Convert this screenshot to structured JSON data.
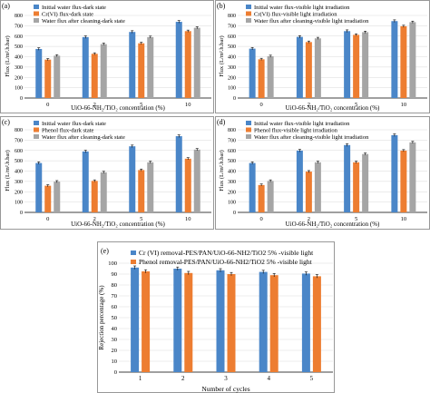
{
  "colors": {
    "series1": "#4a86c8",
    "series2": "#ed7d31",
    "series3": "#a5a5a5",
    "grid": "#d9d9d9",
    "axis": "#000000"
  },
  "chart_data": [
    {
      "panel_label": "(a)",
      "type": "bar",
      "categories": [
        "0",
        "2",
        "5",
        "10"
      ],
      "series": [
        {
          "name": "Initial water flux-dark state",
          "values": [
            475,
            590,
            640,
            738
          ]
        },
        {
          "name": "Cr(VI) flux-dark state",
          "values": [
            372,
            428,
            530,
            648
          ]
        },
        {
          "name": "Water flux after cleaning-dark state",
          "values": [
            410,
            522,
            590,
            680
          ]
        }
      ],
      "errors": [
        [
          12,
          12,
          12,
          12
        ],
        [
          10,
          10,
          10,
          10
        ],
        [
          10,
          10,
          10,
          10
        ]
      ],
      "xlabel": "UiO-66-NH₂/TiO₂ concentration (%)",
      "ylabel": "Flux (L/m².h.bar)",
      "ylim": [
        0,
        800
      ],
      "yticks": [
        "0",
        "100",
        "200",
        "300",
        "400",
        "500",
        "600",
        "700",
        "800"
      ],
      "grid": true,
      "legend": "top-left"
    },
    {
      "panel_label": "(b)",
      "type": "bar",
      "categories": [
        "0",
        "2",
        "5",
        "10"
      ],
      "series": [
        {
          "name": "Initial water flux-visible light irradiation",
          "values": [
            478,
            592,
            648,
            745
          ]
        },
        {
          "name": "Cr(VI) flux-visible light irradiation",
          "values": [
            375,
            542,
            612,
            695
          ]
        },
        {
          "name": "Water flux after cleaning-visible light irradiation",
          "values": [
            405,
            578,
            638,
            735
          ]
        }
      ],
      "errors": [
        [
          12,
          12,
          12,
          12
        ],
        [
          10,
          10,
          10,
          10
        ],
        [
          10,
          10,
          10,
          10
        ]
      ],
      "xlabel": "UiO-66-NH₂/TiO₂ concentration (%)",
      "ylabel": "Flux (L/m².h.bar)",
      "ylim": [
        0,
        800
      ],
      "yticks": [
        "0",
        "100",
        "200",
        "300",
        "400",
        "500",
        "600",
        "700",
        "800"
      ],
      "grid": true,
      "legend": "top-left"
    },
    {
      "panel_label": "(c)",
      "type": "bar",
      "categories": [
        "0",
        "2",
        "5",
        "10"
      ],
      "series": [
        {
          "name": "Initial water flux-dark state",
          "values": [
            478,
            590,
            640,
            738
          ]
        },
        {
          "name": "Phenol flux-dark state",
          "values": [
            258,
            305,
            410,
            520
          ]
        },
        {
          "name": "Water flux after cleaning-dark state",
          "values": [
            298,
            388,
            485,
            608
          ]
        }
      ],
      "errors": [
        [
          12,
          12,
          12,
          12
        ],
        [
          10,
          10,
          10,
          10
        ],
        [
          10,
          10,
          10,
          10
        ]
      ],
      "xlabel": "UiO-66-NH₂/TiO₂ concentration (%)",
      "ylabel": "Flux (L/m².h.bar)",
      "ylim": [
        0,
        800
      ],
      "yticks": [
        "0",
        "100",
        "200",
        "300",
        "400",
        "500",
        "600",
        "700",
        "800"
      ],
      "grid": true,
      "legend": "top-left"
    },
    {
      "panel_label": "(d)",
      "type": "bar",
      "categories": [
        "0",
        "2",
        "5",
        "10"
      ],
      "series": [
        {
          "name": "Initial water flux-visible light irradiation",
          "values": [
            478,
            598,
            652,
            748
          ]
        },
        {
          "name": "Phenol flux-visible light irradiation",
          "values": [
            265,
            395,
            485,
            598
          ]
        },
        {
          "name": "Water flux after cleaning-visible light irradiation",
          "values": [
            305,
            485,
            565,
            678
          ]
        }
      ],
      "errors": [
        [
          12,
          12,
          12,
          12
        ],
        [
          10,
          10,
          10,
          10
        ],
        [
          10,
          10,
          10,
          10
        ]
      ],
      "xlabel": "UiO-66-NH₂/TiO₂ concentration (%)",
      "ylabel": "Flux (L/m².h.bar)",
      "ylim": [
        0,
        800
      ],
      "yticks": [
        "0",
        "100",
        "200",
        "300",
        "400",
        "500",
        "600",
        "700",
        "800"
      ],
      "grid": true,
      "legend": "top-left"
    },
    {
      "panel_label": "(e)",
      "type": "bar",
      "categories": [
        "1",
        "2",
        "3",
        "4",
        "5"
      ],
      "series": [
        {
          "name": "Cr (VI) removal-PES/PAN/UiO-66-NH2/TiO2 5% -visible light",
          "values": [
            96,
            95,
            93.5,
            92,
            90.5
          ]
        },
        {
          "name": "Phenol removal-PES/PAN/UiO-66-NH2/TiO2 5% -visible light",
          "values": [
            92.5,
            91,
            90,
            89,
            88
          ]
        }
      ],
      "errors": [
        [
          1.5,
          1.5,
          1.5,
          1.5,
          1.5
        ],
        [
          1.5,
          1.5,
          1.5,
          1.5,
          1.5
        ]
      ],
      "xlabel": "Number of cycles",
      "ylabel": "Rejection percentage (%)",
      "ylim": [
        0,
        100
      ],
      "yticks": [
        "0",
        "10",
        "20",
        "30",
        "40",
        "50",
        "60",
        "70",
        "80",
        "90",
        "100"
      ],
      "grid": true,
      "legend": "top-left"
    }
  ]
}
